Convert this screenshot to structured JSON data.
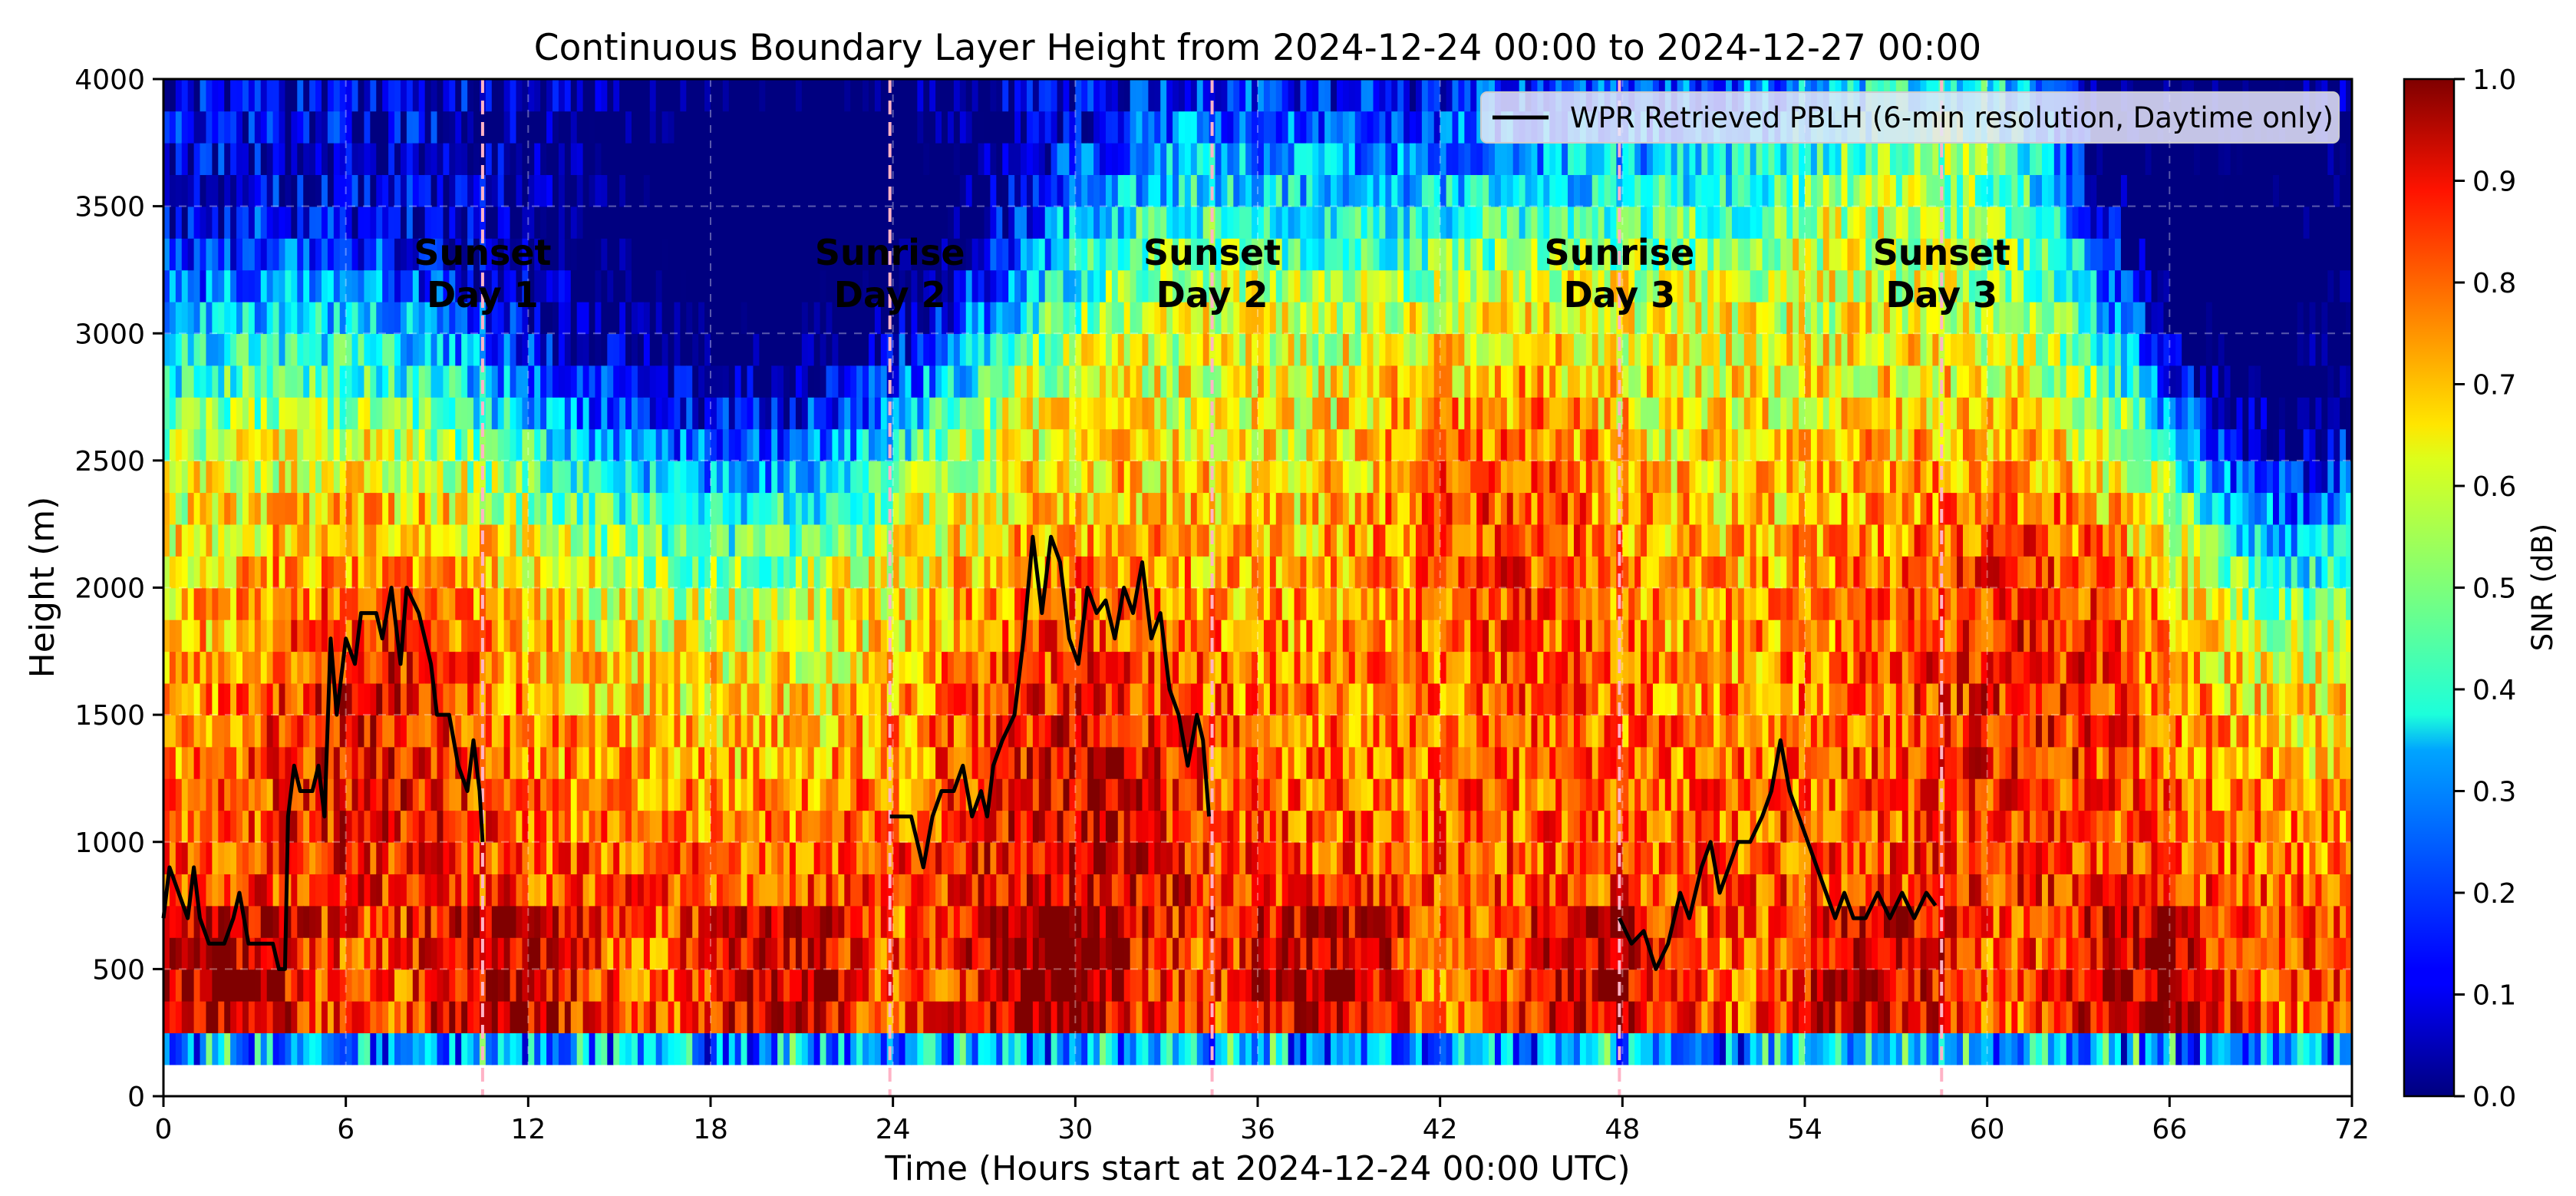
{
  "chart_data": {
    "type": "heatmap",
    "title": "Continuous Boundary Layer Height from 2024-12-24 00:00 to 2024-12-27 00:00",
    "xlabel": "Time (Hours start at 2024-12-24 00:00 UTC)",
    "ylabel": "Height (m)",
    "xlim": [
      0,
      72
    ],
    "ylim": [
      0,
      4000
    ],
    "xticks": [
      0,
      6,
      12,
      18,
      24,
      30,
      36,
      42,
      48,
      54,
      60,
      66,
      72
    ],
    "yticks": [
      0,
      500,
      1000,
      1500,
      2000,
      2500,
      3000,
      3500,
      4000
    ],
    "grid": true,
    "colorbar": {
      "label": "SNR (dB)",
      "range": [
        0.0,
        1.0
      ],
      "ticks": [
        "0.0",
        "0.1",
        "0.2",
        "0.3",
        "0.4",
        "0.5",
        "0.6",
        "0.7",
        "0.8",
        "0.9",
        "1.0"
      ],
      "colormap": "jet"
    },
    "legend": {
      "position": "top-right",
      "entries": [
        {
          "label": "WPR Retrieved PBLH (6-min resolution, Daytime only)",
          "color": "#000000"
        }
      ]
    },
    "annotations": [
      {
        "line1": "Sunset",
        "line2": "Day 1",
        "x": 10.5
      },
      {
        "line1": "Sunrise",
        "line2": "Day 2",
        "x": 23.9
      },
      {
        "line1": "Sunset",
        "line2": "Day 2",
        "x": 34.5
      },
      {
        "line1": "Sunrise",
        "line2": "Day 3",
        "x": 47.9
      },
      {
        "line1": "Sunset",
        "line2": "Day 3",
        "x": 58.5
      }
    ],
    "pblh_series": {
      "name": "WPR Retrieved PBLH (6-min resolution, Daytime only)",
      "segments": [
        [
          [
            0.0,
            700
          ],
          [
            0.2,
            900
          ],
          [
            0.5,
            800
          ],
          [
            0.8,
            700
          ],
          [
            1.0,
            900
          ],
          [
            1.2,
            700
          ],
          [
            1.5,
            600
          ],
          [
            2.0,
            600
          ],
          [
            2.3,
            700
          ],
          [
            2.5,
            800
          ],
          [
            2.8,
            600
          ],
          [
            3.2,
            600
          ],
          [
            3.6,
            600
          ],
          [
            3.8,
            500
          ],
          [
            4.0,
            500
          ],
          [
            4.1,
            1100
          ],
          [
            4.3,
            1300
          ],
          [
            4.5,
            1200
          ],
          [
            4.9,
            1200
          ],
          [
            5.1,
            1300
          ],
          [
            5.3,
            1100
          ],
          [
            5.5,
            1800
          ],
          [
            5.7,
            1500
          ],
          [
            6.0,
            1800
          ],
          [
            6.3,
            1700
          ],
          [
            6.5,
            1900
          ],
          [
            7.0,
            1900
          ],
          [
            7.2,
            1800
          ],
          [
            7.5,
            2000
          ],
          [
            7.8,
            1700
          ],
          [
            8.0,
            2000
          ],
          [
            8.4,
            1900
          ],
          [
            8.6,
            1800
          ],
          [
            8.8,
            1700
          ],
          [
            9.0,
            1500
          ],
          [
            9.4,
            1500
          ],
          [
            9.7,
            1300
          ],
          [
            10.0,
            1200
          ],
          [
            10.2,
            1400
          ],
          [
            10.4,
            1200
          ],
          [
            10.5,
            1000
          ]
        ],
        [
          [
            23.9,
            1100
          ],
          [
            24.2,
            1100
          ],
          [
            24.6,
            1100
          ],
          [
            24.8,
            1000
          ],
          [
            25.0,
            900
          ],
          [
            25.3,
            1100
          ],
          [
            25.6,
            1200
          ],
          [
            26.0,
            1200
          ],
          [
            26.3,
            1300
          ],
          [
            26.6,
            1100
          ],
          [
            26.9,
            1200
          ],
          [
            27.1,
            1100
          ],
          [
            27.3,
            1300
          ],
          [
            27.6,
            1400
          ],
          [
            28.0,
            1500
          ],
          [
            28.3,
            1800
          ],
          [
            28.6,
            2200
          ],
          [
            28.9,
            1900
          ],
          [
            29.2,
            2200
          ],
          [
            29.5,
            2100
          ],
          [
            29.8,
            1800
          ],
          [
            30.1,
            1700
          ],
          [
            30.4,
            2000
          ],
          [
            30.7,
            1900
          ],
          [
            31.0,
            1950
          ],
          [
            31.3,
            1800
          ],
          [
            31.6,
            2000
          ],
          [
            31.9,
            1900
          ],
          [
            32.2,
            2100
          ],
          [
            32.5,
            1800
          ],
          [
            32.8,
            1900
          ],
          [
            33.1,
            1600
          ],
          [
            33.4,
            1500
          ],
          [
            33.7,
            1300
          ],
          [
            34.0,
            1500
          ],
          [
            34.2,
            1400
          ],
          [
            34.4,
            1100
          ]
        ],
        [
          [
            47.9,
            700
          ],
          [
            48.3,
            600
          ],
          [
            48.7,
            650
          ],
          [
            49.1,
            500
          ],
          [
            49.5,
            600
          ],
          [
            49.9,
            800
          ],
          [
            50.2,
            700
          ],
          [
            50.6,
            900
          ],
          [
            50.9,
            1000
          ],
          [
            51.2,
            800
          ],
          [
            51.5,
            900
          ],
          [
            51.8,
            1000
          ],
          [
            52.2,
            1000
          ],
          [
            52.6,
            1100
          ],
          [
            52.9,
            1200
          ],
          [
            53.2,
            1400
          ],
          [
            53.5,
            1200
          ],
          [
            53.8,
            1100
          ],
          [
            54.1,
            1000
          ],
          [
            54.4,
            900
          ],
          [
            54.7,
            800
          ],
          [
            55.0,
            700
          ],
          [
            55.3,
            800
          ],
          [
            55.6,
            700
          ],
          [
            56.0,
            700
          ],
          [
            56.4,
            800
          ],
          [
            56.8,
            700
          ],
          [
            57.2,
            800
          ],
          [
            57.6,
            700
          ],
          [
            58.0,
            800
          ],
          [
            58.3,
            750
          ]
        ]
      ]
    }
  }
}
